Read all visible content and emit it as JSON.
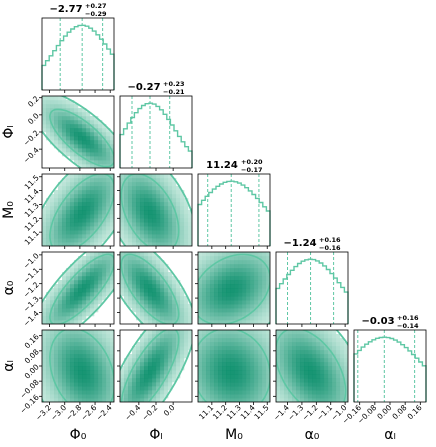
{
  "chart_data": {
    "type": "corner",
    "colors": {
      "accent": "#5ec7a4",
      "fill_light": "#d4f0e6",
      "fill_dark": "#0b8f6c",
      "frame": "#000000",
      "background": "#ffffff"
    },
    "parameters": [
      {
        "name": "phi0",
        "label": "Φ₀",
        "median": -2.77,
        "err_plus": 0.27,
        "err_minus": 0.29,
        "title_main": "−2.77",
        "title_plus": "+0.27",
        "title_minus": "−0.29",
        "range": [
          -3.3,
          -2.35
        ],
        "ticks": [
          -3.2,
          -3.0,
          -2.8,
          -2.6,
          -2.4
        ],
        "tick_labels": [
          "−3.2",
          "−3.0",
          "−2.8",
          "−2.6",
          "−2.4"
        ]
      },
      {
        "name": "phil",
        "label": "Φₗ",
        "median": -0.27,
        "err_plus": 0.23,
        "err_minus": 0.21,
        "title_main": "−0.27",
        "title_plus": "+0.23",
        "title_minus": "−0.21",
        "range": [
          -0.62,
          0.22
        ],
        "ticks": [
          -0.4,
          -0.2,
          0.0
        ],
        "tick_labels": [
          "−0.4",
          "−0.2",
          "0.0"
        ],
        "side_ticks": [
          0.2,
          0.0,
          -0.2,
          -0.4
        ],
        "side_tick_labels": [
          "0.2",
          "0.0",
          "−0.2",
          "−0.4"
        ]
      },
      {
        "name": "m0",
        "label": "M₀",
        "median": 11.24,
        "err_plus": 0.2,
        "err_minus": 0.17,
        "title_main": "11.24",
        "title_plus": "+0.20",
        "title_minus": "−0.17",
        "range": [
          11.0,
          11.52
        ],
        "ticks": [
          11.1,
          11.2,
          11.3,
          11.4,
          11.5
        ],
        "tick_labels": [
          "11.1",
          "11.2",
          "11.3",
          "11.4",
          "11.5"
        ]
      },
      {
        "name": "alpha0",
        "label": "α₀",
        "median": -1.24,
        "err_plus": 0.16,
        "err_minus": 0.16,
        "title_main": "−1.24",
        "title_plus": "+0.16",
        "title_minus": "−0.16",
        "range": [
          -1.48,
          -0.98
        ],
        "ticks": [
          -1.4,
          -1.3,
          -1.2,
          -1.1,
          -1.0
        ],
        "tick_labels": [
          "−1.4",
          "−1.3",
          "−1.2",
          "−1.1",
          "−1.0"
        ]
      },
      {
        "name": "alphal",
        "label": "αₗ",
        "median": -0.03,
        "err_plus": 0.16,
        "err_minus": 0.14,
        "title_main": "−0.03",
        "title_plus": "+0.16",
        "title_minus": "−0.14",
        "range": [
          -0.19,
          0.19
        ],
        "ticks": [
          -0.16,
          -0.08,
          0.0,
          0.08,
          0.16
        ],
        "tick_labels": [
          "−0.16",
          "−0.08",
          "0.00",
          "0.08",
          "0.16"
        ]
      }
    ],
    "correlations": [
      [
        1,
        -0.75,
        0.6,
        0.8,
        -0.3
      ],
      [
        -0.75,
        1,
        -0.45,
        -0.7,
        0.75
      ],
      [
        0.6,
        -0.45,
        1,
        0.3,
        -0.1
      ],
      [
        0.8,
        -0.7,
        0.3,
        1,
        -0.45
      ],
      [
        -0.3,
        0.75,
        -0.1,
        -0.45,
        1
      ]
    ]
  }
}
